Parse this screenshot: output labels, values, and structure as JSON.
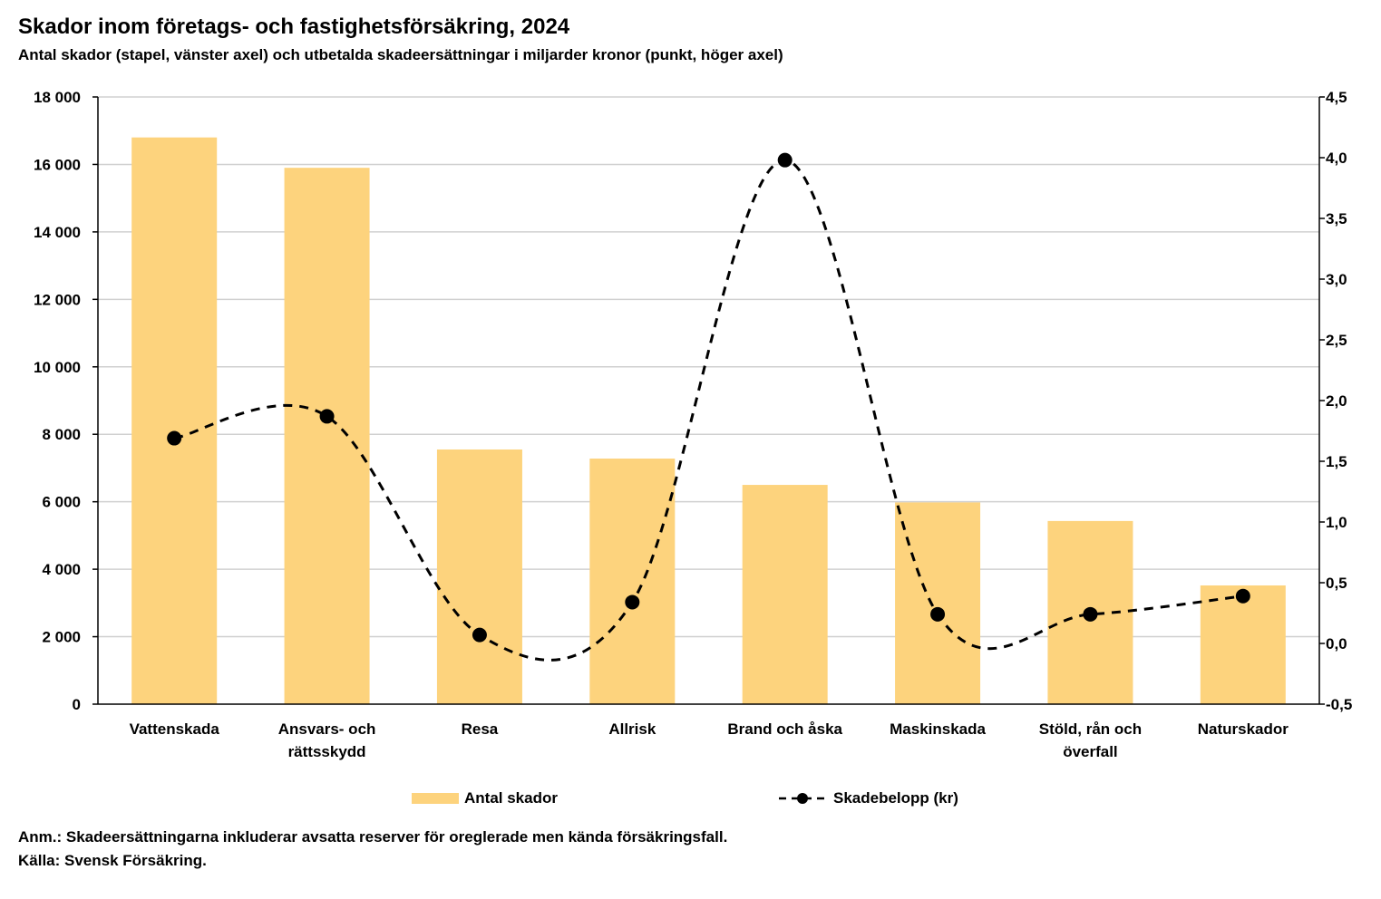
{
  "title": "Skador inom företags- och fastighetsförsäkring, 2024",
  "subtitle": "Antal skador (stapel, vänster axel) och utbetalda skadeersättningar i miljarder kronor (punkt, höger axel)",
  "chart_data": {
    "type": "bar+line",
    "categories": [
      [
        "Vattenskada"
      ],
      [
        "Ansvars- och",
        "rättsskydd"
      ],
      [
        "Resa"
      ],
      [
        "Allrisk"
      ],
      [
        "Brand och åska"
      ],
      [
        "Maskinskada"
      ],
      [
        "Stöld, rån och",
        "överfall"
      ],
      [
        "Naturskador"
      ]
    ],
    "series": [
      {
        "name": "Antal skador",
        "axis": "left",
        "kind": "bar",
        "color": "#FDD37D",
        "values": [
          16800,
          15900,
          7550,
          7280,
          6500,
          5980,
          5430,
          3520
        ]
      },
      {
        "name": "Skadebelopp (kr)",
        "axis": "right",
        "kind": "line-dashed-markers",
        "color": "#000000",
        "values": [
          1.69,
          1.87,
          0.07,
          0.34,
          3.98,
          0.24,
          0.24,
          0.39
        ]
      }
    ],
    "left_axis": {
      "min": 0,
      "max": 18000,
      "step": 2000,
      "tick_labels": [
        "0",
        "2 000",
        "4 000",
        "6 000",
        "8 000",
        "10 000",
        "12 000",
        "14 000",
        "16 000",
        "18 000"
      ]
    },
    "right_axis": {
      "min": -0.5,
      "max": 4.5,
      "step": 0.5,
      "tick_labels": [
        "-0,5",
        "0,0",
        "0,5",
        "1,0",
        "1,5",
        "2,0",
        "2,5",
        "3,0",
        "3,5",
        "4,0",
        "4,5"
      ]
    },
    "grid": true,
    "legend_position": "bottom"
  },
  "legend": {
    "bar_label": "Antal skador",
    "line_label": "Skadebelopp (kr)"
  },
  "note": "Anm.: Skadeersättningarna inkluderar avsatta reserver för oreglerade men kända försäkringsfall.",
  "source": "Källa: Svensk Försäkring."
}
